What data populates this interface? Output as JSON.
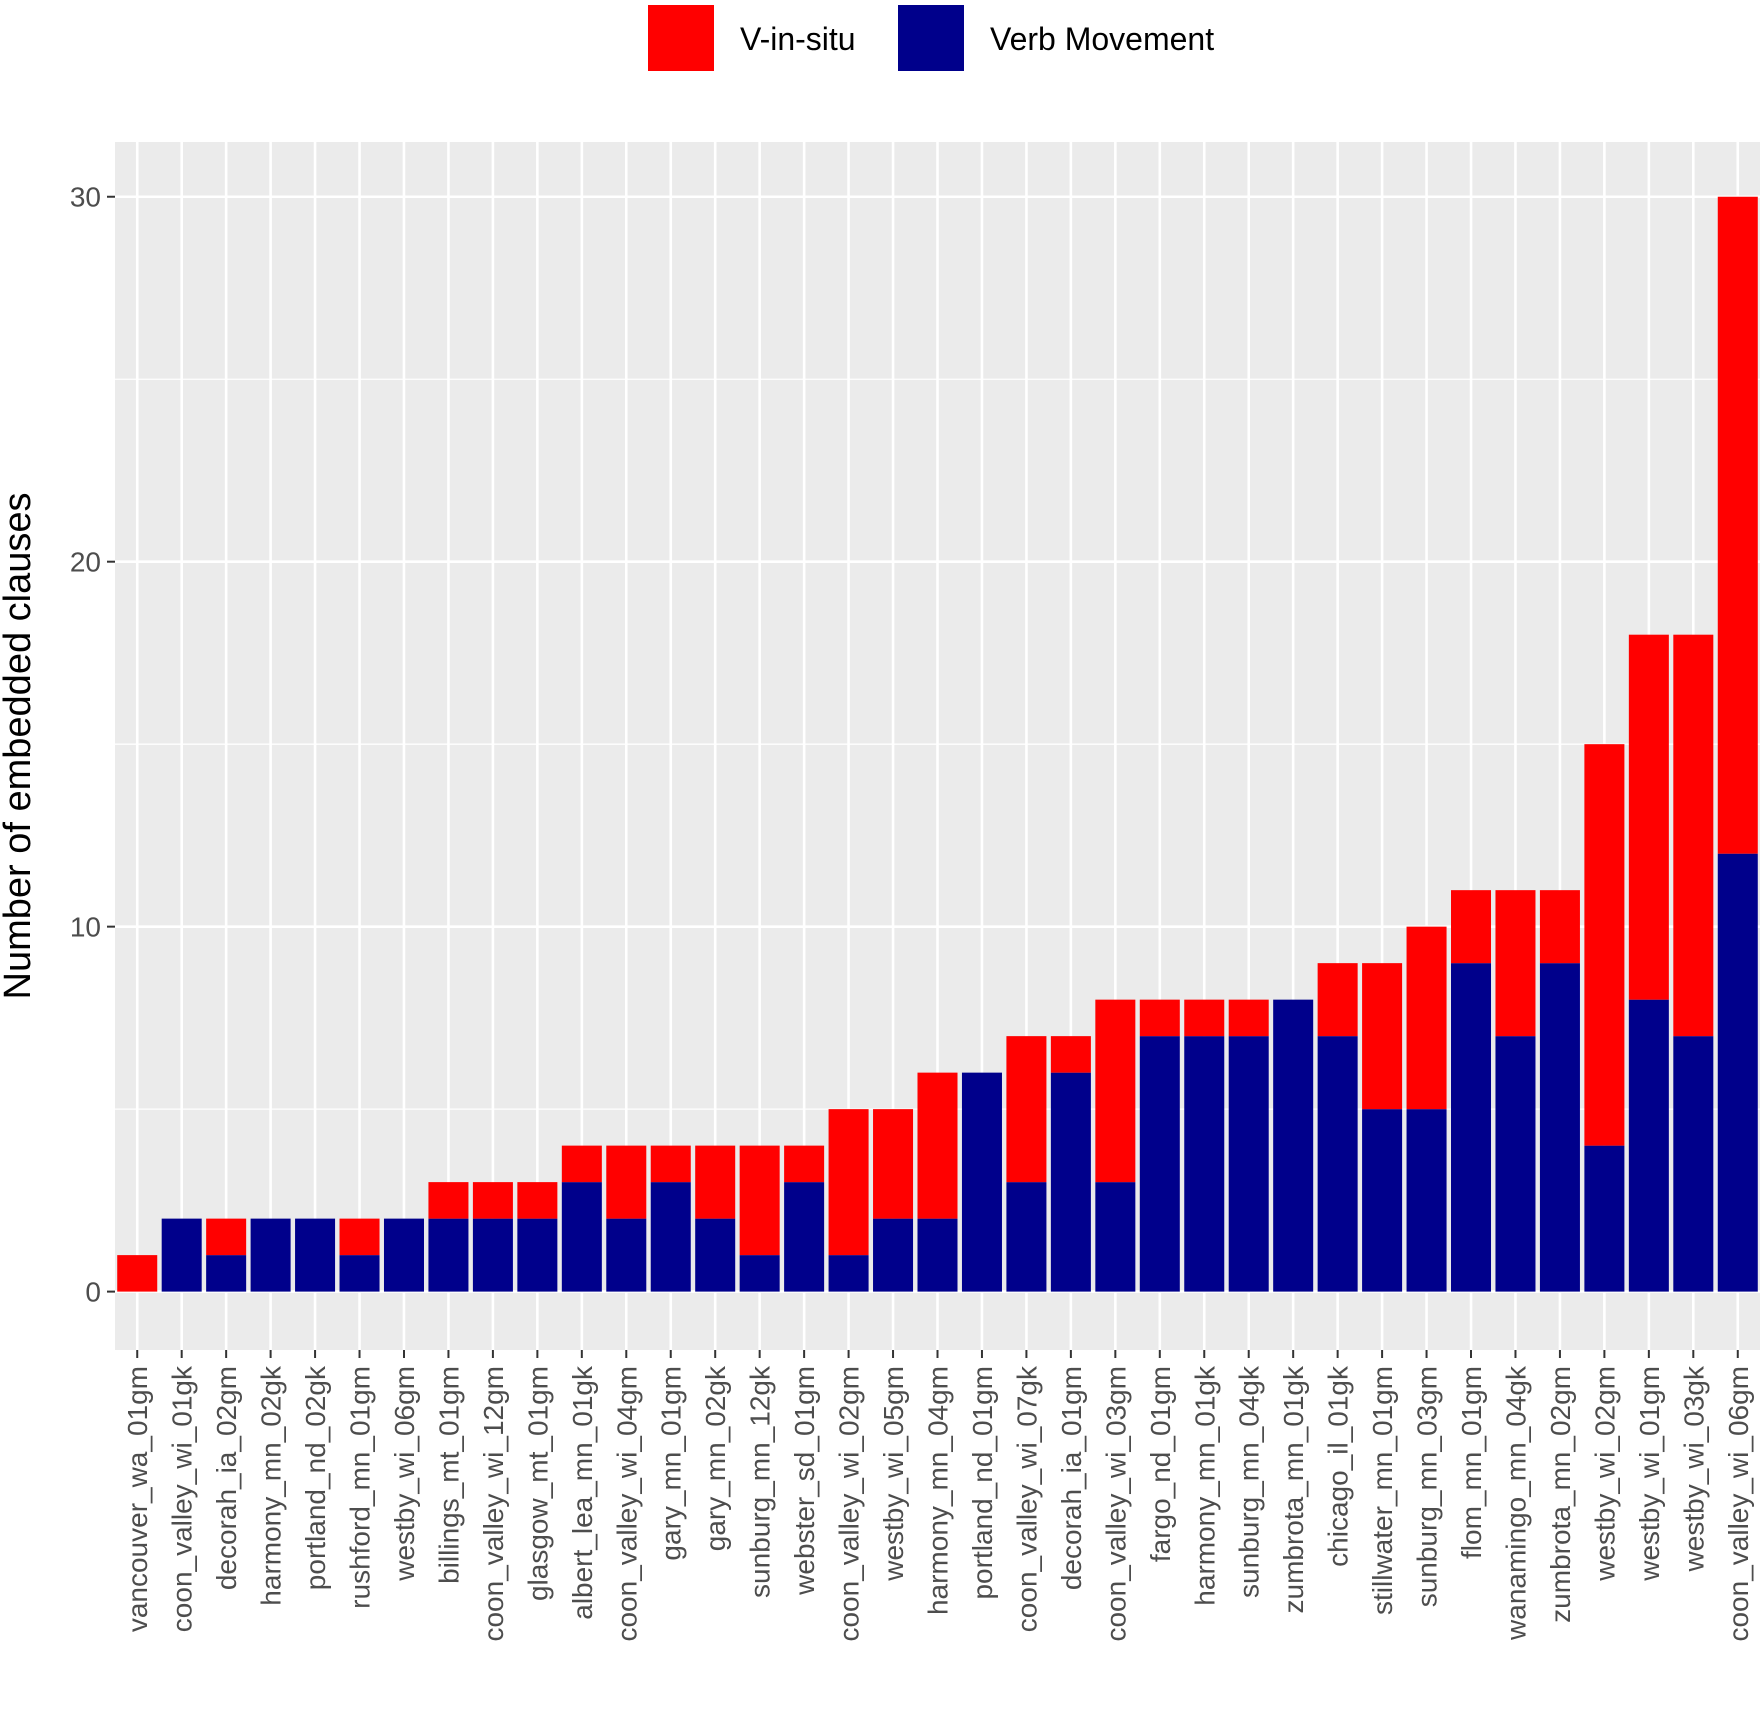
{
  "chart_data": {
    "type": "bar",
    "stacked": true,
    "xlabel": "",
    "ylabel": "Number of embedded clauses",
    "ylim": [
      -1.6,
      31.5
    ],
    "yticks": [
      0,
      10,
      20,
      30
    ],
    "grid": true,
    "legend_position": "top",
    "categories": [
      "vancouver_wa_01gm",
      "coon_valley_wi_01gk",
      "decorah_ia_02gm",
      "harmony_mn_02gk",
      "portland_nd_02gk",
      "rushford_mn_01gm",
      "westby_wi_06gm",
      "billings_mt_01gm",
      "coon_valley_wi_12gm",
      "glasgow_mt_01gm",
      "albert_lea_mn_01gk",
      "coon_valley_wi_04gm",
      "gary_mn_01gm",
      "gary_mn_02gk",
      "sunburg_mn_12gk",
      "webster_sd_01gm",
      "coon_valley_wi_02gm",
      "westby_wi_05gm",
      "harmony_mn_04gm",
      "portland_nd_01gm",
      "coon_valley_wi_07gk",
      "decorah_ia_01gm",
      "coon_valley_wi_03gm",
      "fargo_nd_01gm",
      "harmony_mn_01gk",
      "sunburg_mn_04gk",
      "zumbrota_mn_01gk",
      "chicago_il_01gk",
      "stillwater_mn_01gm",
      "sunburg_mn_03gm",
      "flom_mn_01gm",
      "wanamingo_mn_04gk",
      "zumbrota_mn_02gm",
      "westby_wi_02gm",
      "westby_wi_01gm",
      "westby_wi_03gk",
      "coon_valley_wi_06gm"
    ],
    "series": [
      {
        "name": "Verb Movement",
        "color": "#00008b",
        "values": [
          0,
          2,
          1,
          2,
          2,
          1,
          2,
          2,
          2,
          2,
          3,
          2,
          3,
          2,
          1,
          3,
          1,
          2,
          2,
          6,
          3,
          6,
          3,
          7,
          7,
          7,
          8,
          7,
          5,
          5,
          9,
          7,
          9,
          4,
          8,
          7,
          12
        ]
      },
      {
        "name": "V-in-situ",
        "color": "#ff0000",
        "values": [
          1,
          0,
          1,
          0,
          0,
          1,
          0,
          1,
          1,
          1,
          1,
          2,
          1,
          2,
          3,
          1,
          4,
          3,
          4,
          0,
          4,
          1,
          5,
          1,
          1,
          1,
          0,
          2,
          4,
          5,
          2,
          4,
          2,
          11,
          10,
          11,
          18
        ]
      }
    ],
    "legend_order": [
      "V-in-situ",
      "Verb Movement"
    ]
  }
}
